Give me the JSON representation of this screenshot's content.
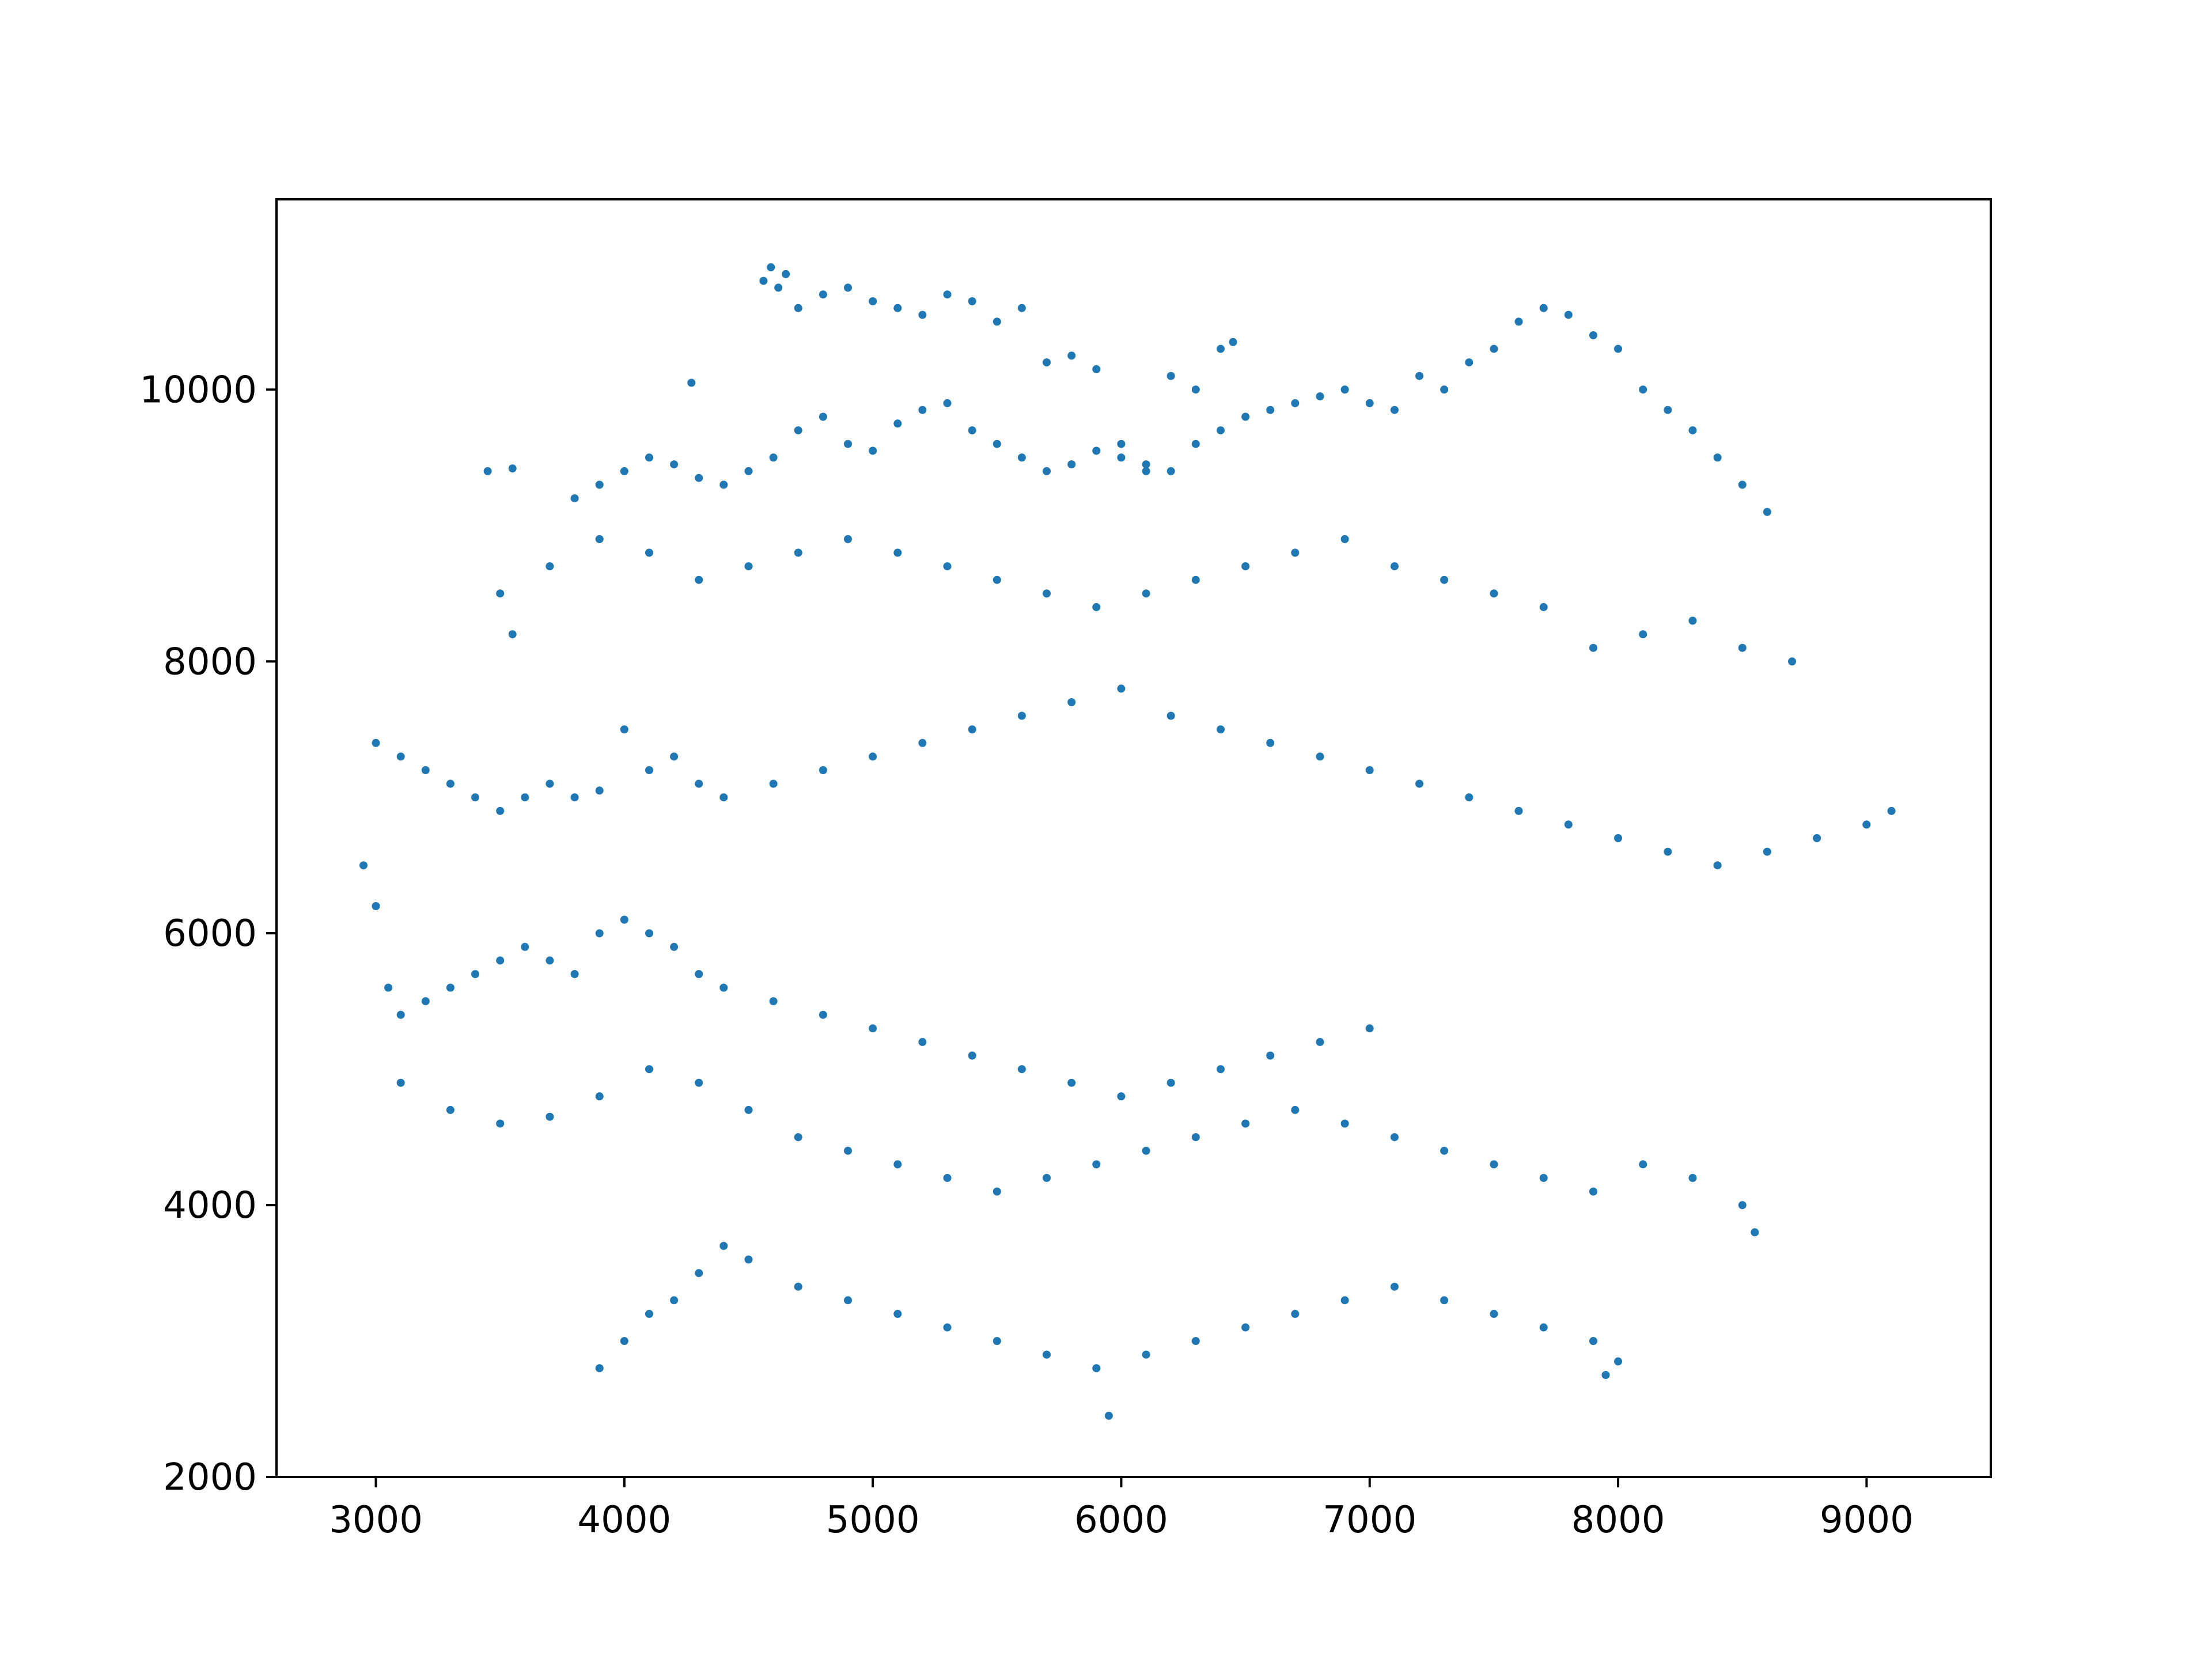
{
  "chart_data": {
    "type": "scatter",
    "title": "",
    "xlabel": "",
    "ylabel": "",
    "xlim": [
      2600,
      9500
    ],
    "ylim": [
      2000,
      11400
    ],
    "xticks": [
      3000,
      4000,
      5000,
      6000,
      7000,
      8000,
      9000
    ],
    "yticks": [
      2000,
      4000,
      6000,
      8000,
      10000
    ],
    "xtick_labels": [
      "3000",
      "4000",
      "5000",
      "6000",
      "7000",
      "8000",
      "9000"
    ],
    "ytick_labels": [
      "2000",
      "4000",
      "6000",
      "8000",
      "10000"
    ],
    "grid": false,
    "legend": "none",
    "marker_color": "#1f77b4",
    "series": [
      {
        "x": [
          4560,
          4590,
          4620,
          4650,
          4700,
          4800,
          4900,
          5000,
          5100,
          5200,
          5300,
          5400,
          5500,
          5600,
          5700,
          5800,
          5900,
          6000,
          6100,
          6200,
          6300,
          6400,
          6450,
          3800,
          3900,
          4000,
          4100,
          4200,
          4300,
          4400,
          4500,
          4600,
          4700,
          4800,
          4900,
          5000,
          5100,
          5200,
          5300,
          5400,
          5500,
          5600,
          5700,
          5800,
          5900,
          6000,
          6100,
          6200,
          6300,
          6400,
          6500,
          6600,
          6700,
          6800,
          6900,
          7000,
          7100,
          7200,
          7300,
          7400,
          7500,
          7600,
          7700,
          7800,
          7900,
          8000,
          8100,
          8200,
          8300,
          8400,
          8500,
          8600,
          3500,
          3700,
          3900,
          4100,
          4300,
          4500,
          4700,
          4900,
          5100,
          5300,
          5500,
          5700,
          5900,
          6100,
          6300,
          6500,
          6700,
          6900,
          7100,
          7300,
          7500,
          7700,
          7900,
          8100,
          8300,
          8500,
          8700,
          3000,
          3100,
          3200,
          3300,
          3400,
          3500,
          3600,
          3700,
          3800,
          3900,
          4000,
          4100,
          4200,
          4300,
          4400,
          4600,
          4800,
          5000,
          5200,
          5400,
          5600,
          5800,
          6000,
          6200,
          6400,
          6600,
          6800,
          7000,
          7200,
          7400,
          7600,
          7800,
          8000,
          8200,
          8400,
          8600,
          8800,
          9000,
          9100,
          2950,
          3000,
          3050,
          3100,
          3200,
          3300,
          3400,
          3500,
          3600,
          3700,
          3800,
          3900,
          4000,
          4100,
          4200,
          4300,
          4400,
          4600,
          4800,
          5000,
          5200,
          5400,
          5600,
          5800,
          6000,
          6200,
          6400,
          6600,
          6800,
          7000,
          3100,
          3300,
          3500,
          3700,
          3900,
          4100,
          4300,
          4500,
          4700,
          4900,
          5100,
          5300,
          5500,
          5700,
          5900,
          6100,
          6300,
          6500,
          6700,
          6900,
          7100,
          7300,
          7500,
          7700,
          7900,
          8100,
          8300,
          8500,
          3900,
          4000,
          4100,
          4200,
          4300,
          4400,
          4500,
          4700,
          4900,
          5100,
          5300,
          5500,
          5700,
          5900,
          6100,
          6300,
          6500,
          6700,
          6900,
          7100,
          7300,
          7500,
          7700,
          7900,
          5950,
          4270,
          3450,
          3550,
          3550,
          8000,
          8550,
          7950
        ],
        "y": [
          10800,
          10900,
          10750,
          10850,
          10600,
          10700,
          10750,
          10650,
          10600,
          10550,
          10700,
          10650,
          10500,
          10600,
          10200,
          10250,
          10150,
          9500,
          9400,
          10100,
          10000,
          10300,
          10350,
          9200,
          9300,
          9400,
          9500,
          9450,
          9350,
          9300,
          9400,
          9500,
          9700,
          9800,
          9600,
          9550,
          9750,
          9850,
          9900,
          9700,
          9600,
          9500,
          9400,
          9450,
          9550,
          9600,
          9450,
          9400,
          9600,
          9700,
          9800,
          9850,
          9900,
          9950,
          10000,
          9900,
          9850,
          10100,
          10000,
          10200,
          10300,
          10500,
          10600,
          10550,
          10400,
          10300,
          10000,
          9850,
          9700,
          9500,
          9300,
          9100,
          8500,
          8700,
          8900,
          8800,
          8600,
          8700,
          8800,
          8900,
          8800,
          8700,
          8600,
          8500,
          8400,
          8500,
          8600,
          8700,
          8800,
          8900,
          8700,
          8600,
          8500,
          8400,
          8100,
          8200,
          8300,
          8100,
          8000,
          7400,
          7300,
          7200,
          7100,
          7000,
          6900,
          7000,
          7100,
          7000,
          7050,
          7500,
          7200,
          7300,
          7100,
          7000,
          7100,
          7200,
          7300,
          7400,
          7500,
          7600,
          7700,
          7800,
          7600,
          7500,
          7400,
          7300,
          7200,
          7100,
          7000,
          6900,
          6800,
          6700,
          6600,
          6500,
          6600,
          6700,
          6800,
          6900,
          6500,
          6200,
          5600,
          5400,
          5500,
          5600,
          5700,
          5800,
          5900,
          5800,
          5700,
          6000,
          6100,
          6000,
          5900,
          5700,
          5600,
          5500,
          5400,
          5300,
          5200,
          5100,
          5000,
          4900,
          4800,
          4900,
          5000,
          5100,
          5200,
          5300,
          4900,
          4700,
          4600,
          4650,
          4800,
          5000,
          4900,
          4700,
          4500,
          4400,
          4300,
          4200,
          4100,
          4200,
          4300,
          4400,
          4500,
          4600,
          4700,
          4600,
          4500,
          4400,
          4300,
          4200,
          4100,
          4300,
          4200,
          4000,
          2800,
          3000,
          3200,
          3300,
          3500,
          3700,
          3600,
          3400,
          3300,
          3200,
          3100,
          3000,
          2900,
          2800,
          2900,
          3000,
          3100,
          3200,
          3300,
          3400,
          3300,
          3200,
          3100,
          3000,
          2450,
          10050,
          9400,
          9420,
          8200,
          2850,
          3800,
          2750
        ]
      }
    ]
  }
}
